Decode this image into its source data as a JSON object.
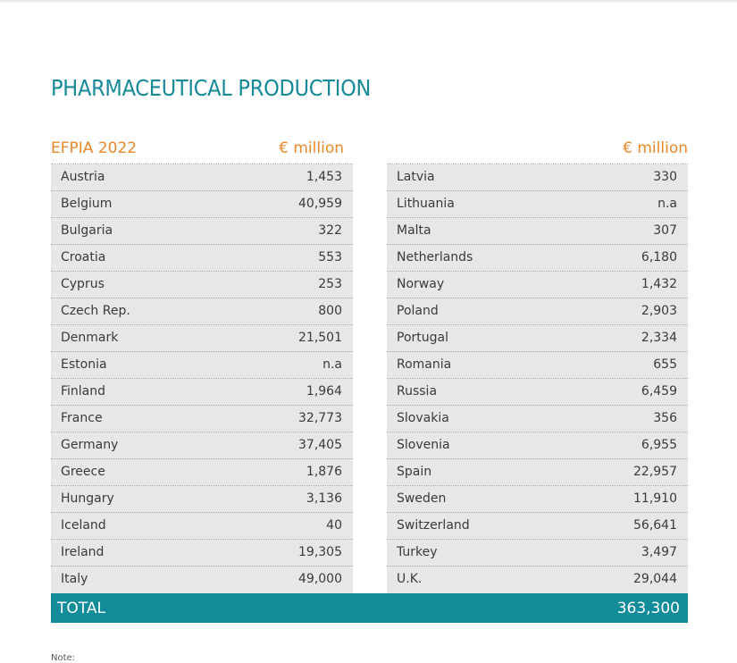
{
  "title": "PHARMACEUTICAL PRODUCTION",
  "table": {
    "header": [
      "EFPIA 2022",
      "€ million",
      "€ million"
    ],
    "left_rows": [
      [
        "Austria",
        "1,453"
      ],
      [
        "Belgium",
        "40,959"
      ],
      [
        "Bulgaria",
        "322"
      ],
      [
        "Croatia",
        "553"
      ],
      [
        "Cyprus",
        "253"
      ],
      [
        "Czech Rep.",
        "800"
      ],
      [
        "Denmark",
        "21,501"
      ],
      [
        "Estonia",
        "n.a"
      ],
      [
        "Finland",
        "1,964"
      ],
      [
        "France",
        "32,773"
      ],
      [
        "Germany",
        "37,405"
      ],
      [
        "Greece",
        "1,876"
      ],
      [
        "Hungary",
        "3,136"
      ],
      [
        "Iceland",
        "40"
      ],
      [
        "Ireland",
        "19,305"
      ],
      [
        "Italy",
        "49,000"
      ]
    ],
    "right_rows": [
      [
        "Latvia",
        "330"
      ],
      [
        "Lithuania",
        "n.a"
      ],
      [
        "Malta",
        "307"
      ],
      [
        "Netherlands",
        "6,180"
      ],
      [
        "Norway",
        "1,432"
      ],
      [
        "Poland",
        "2,903"
      ],
      [
        "Portugal",
        "2,334"
      ],
      [
        "Romania",
        "655"
      ],
      [
        "Russia",
        "6,459"
      ],
      [
        "Slovakia",
        "356"
      ],
      [
        "Slovenia",
        "6,955"
      ],
      [
        "Spain",
        "22,957"
      ],
      [
        "Sweden",
        "11,910"
      ],
      [
        "Switzerland",
        "56,641"
      ],
      [
        "Turkey",
        "3,497"
      ],
      [
        "U.K.",
        "29,044"
      ]
    ],
    "total": [
      "TOTAL",
      "363,300"
    ]
  },
  "note": "Note:"
}
